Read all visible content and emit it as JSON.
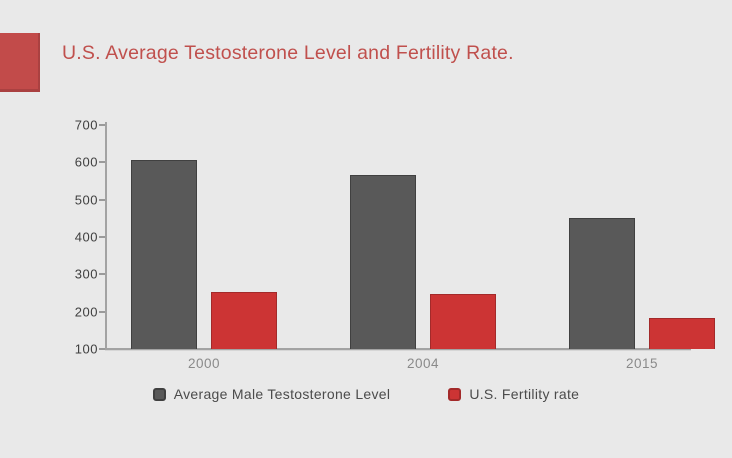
{
  "chart_data": {
    "type": "bar",
    "title": "U.S. Average Testosterone Level and Fertility Rate.",
    "categories": [
      "2000",
      "2004",
      "2015"
    ],
    "series": [
      {
        "name": "Average Male Testosterone Level",
        "color": "#595959",
        "border_color": "#404040",
        "values": [
          605,
          565,
          450
        ]
      },
      {
        "name": "U.S. Fertility rate",
        "color": "#cc3434",
        "border_color": "#a32a2a",
        "values": [
          253,
          248,
          182
        ]
      }
    ],
    "ylim": [
      100,
      700
    ],
    "yticks": [
      700,
      600,
      500,
      400,
      300,
      200,
      100
    ],
    "xlabel": "",
    "ylabel": "",
    "grid": false,
    "legend_position": "bottom"
  },
  "colors": {
    "background": "#e9e9e9",
    "accent_block": "#c24b4a",
    "title_text": "#c0504d",
    "axis_line": "#a3a3a3",
    "y_label_text": "#3f3f3f",
    "x_label_text": "#8a8a8a",
    "legend_text": "#4b4b4b"
  }
}
